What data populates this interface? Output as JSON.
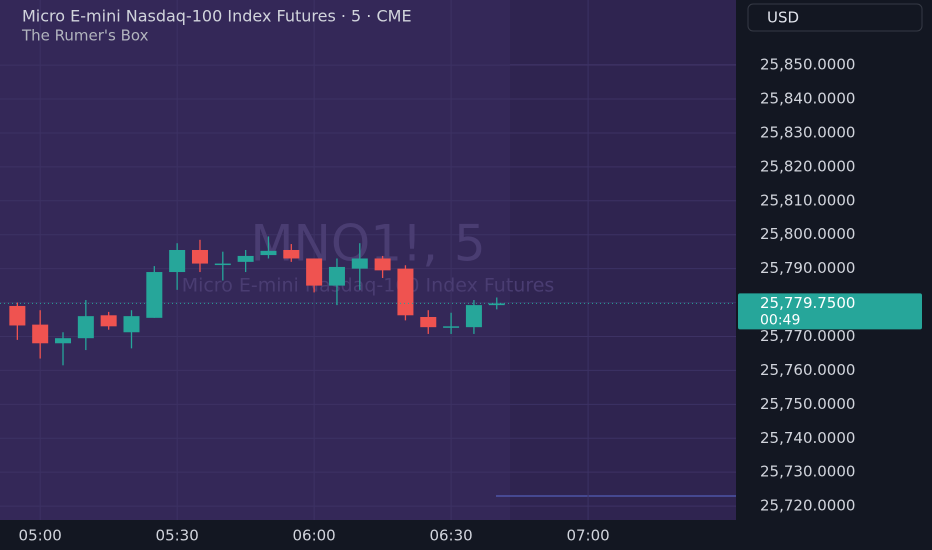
{
  "chart_data": {
    "type": "candlestick",
    "title": "Micro E-mini Nasdaq-100 Index Futures · 5 · CME",
    "subtitle": "The Rumer's Box",
    "watermark": "MNQ1!, 5",
    "watermark_subtitle": "Micro E-mini Nasdaq-100 Index Futures",
    "currency": "USD",
    "x": [
      295,
      300,
      305,
      310,
      315,
      320,
      325,
      330,
      335,
      340,
      345,
      350,
      355,
      360,
      365,
      370,
      375,
      380,
      385,
      390,
      395,
      400
    ],
    "open": [
      25779,
      25773.5,
      25768,
      25769.5,
      25776.25,
      25771.25,
      25775.5,
      25789,
      25795.5,
      25791.5,
      25792,
      25794,
      25795.5,
      25793,
      25785,
      25790,
      25793,
      25790,
      25775.75,
      25773,
      25772.75,
      25779.25
    ],
    "high": [
      25780,
      25777.75,
      25771.25,
      25780.75,
      25777.25,
      25777.75,
      25790.75,
      25797.5,
      25798.5,
      25795,
      25795.5,
      25799.5,
      25797.25,
      25793,
      25793,
      25797.5,
      25793.75,
      25791,
      25777.75,
      25777,
      25780.75,
      25781.5
    ],
    "low": [
      25769,
      25763.5,
      25761.5,
      25766,
      25772,
      25766.5,
      25775.5,
      25783.75,
      25789,
      25786.5,
      25789,
      25793,
      25792,
      25783,
      25779.25,
      25783.75,
      25787.25,
      25774.75,
      25770.75,
      25770.75,
      25770.75,
      25778
    ],
    "close": [
      25773.25,
      25768,
      25769.5,
      25776,
      25773,
      25776,
      25789,
      25795.5,
      25791.5,
      25791.5,
      25793.75,
      25795.25,
      25793,
      25785,
      25790.5,
      25793,
      25789.5,
      25776.25,
      25772.75,
      25773,
      25779.25,
      25779.75
    ],
    "up_color": "#26a69a",
    "down_color": "#ef5350",
    "xlim": [
      291.2,
      452.4
    ],
    "xticks": [
      {
        "value": 300,
        "label": "05:00"
      },
      {
        "value": 330,
        "label": "05:30"
      },
      {
        "value": 360,
        "label": "06:00"
      },
      {
        "value": 390,
        "label": "06:30"
      },
      {
        "value": 420,
        "label": "07:00"
      }
    ],
    "ylim": [
      25715.9,
      25869.2
    ],
    "yticks": [
      {
        "value": 25720,
        "label": "25,720.0000"
      },
      {
        "value": 25730,
        "label": "25,730.0000"
      },
      {
        "value": 25740,
        "label": "25,740.0000"
      },
      {
        "value": 25750,
        "label": "25,750.0000"
      },
      {
        "value": 25760,
        "label": "25,760.0000"
      },
      {
        "value": 25770,
        "label": "25,770.0000"
      },
      {
        "value": 25780,
        "label": "25,780.0000"
      },
      {
        "value": 25790,
        "label": "25,790.0000"
      },
      {
        "value": 25800,
        "label": "25,800.0000"
      },
      {
        "value": 25810,
        "label": "25,810.0000"
      },
      {
        "value": 25820,
        "label": "25,820.0000"
      },
      {
        "value": 25830,
        "label": "25,830.0000"
      },
      {
        "value": 25840,
        "label": "25,840.0000"
      },
      {
        "value": 25850,
        "label": "25,850.0000"
      }
    ],
    "current_price": {
      "value": 25779.75,
      "label": "25,779.7500"
    },
    "countdown": "00:49",
    "grid": true
  }
}
